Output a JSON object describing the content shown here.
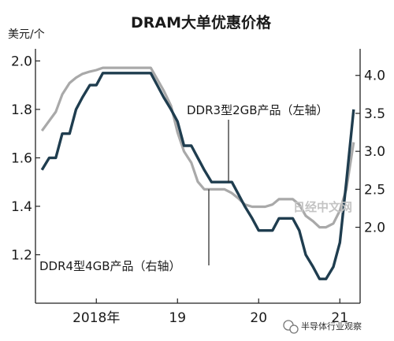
{
  "chart_data": {
    "type": "line",
    "title": "DRAM大单优惠价格",
    "y_left_unit": "美元/个",
    "x_axis": {
      "range": [
        2017.25,
        2021.25
      ],
      "ticks": [
        {
          "value": 2018,
          "label": "2018年"
        },
        {
          "value": 2019,
          "label": "19"
        },
        {
          "value": 2020,
          "label": "20"
        },
        {
          "value": 2021,
          "label": "21"
        }
      ]
    },
    "y_left": {
      "range": [
        1.0,
        2.05
      ],
      "ticks": [
        {
          "value": 1.2,
          "label": "1.2"
        },
        {
          "value": 1.4,
          "label": "1.4"
        },
        {
          "value": 1.6,
          "label": "1.6"
        },
        {
          "value": 1.8,
          "label": "1.8"
        },
        {
          "value": 2.0,
          "label": "2.0"
        }
      ]
    },
    "y_right": {
      "range": [
        1.0,
        4.35
      ],
      "ticks": [
        {
          "value": 2.0,
          "label": "2.0"
        },
        {
          "value": 2.5,
          "label": "2.5"
        },
        {
          "value": 3.0,
          "label": "3.0"
        },
        {
          "value": 3.5,
          "label": "3.5"
        },
        {
          "value": 4.0,
          "label": "4.0"
        }
      ]
    },
    "series": [
      {
        "name": "DDR4型4GB产品（右轴）",
        "axis": "right",
        "color": "#a9a9a9",
        "points": [
          [
            2017.33,
            3.27
          ],
          [
            2017.5,
            3.52
          ],
          [
            2017.58,
            3.75
          ],
          [
            2017.67,
            3.9
          ],
          [
            2017.75,
            3.97
          ],
          [
            2017.83,
            4.02
          ],
          [
            2017.92,
            4.05
          ],
          [
            2018.0,
            4.07
          ],
          [
            2018.08,
            4.1
          ],
          [
            2018.17,
            4.1
          ],
          [
            2018.25,
            4.1
          ],
          [
            2018.33,
            4.1
          ],
          [
            2018.42,
            4.1
          ],
          [
            2018.5,
            4.1
          ],
          [
            2018.58,
            4.1
          ],
          [
            2018.67,
            4.1
          ],
          [
            2018.75,
            3.95
          ],
          [
            2018.83,
            3.8
          ],
          [
            2018.92,
            3.6
          ],
          [
            2019.0,
            3.25
          ],
          [
            2019.08,
            3.0
          ],
          [
            2019.17,
            2.85
          ],
          [
            2019.25,
            2.6
          ],
          [
            2019.33,
            2.5
          ],
          [
            2019.42,
            2.5
          ],
          [
            2019.5,
            2.5
          ],
          [
            2019.58,
            2.5
          ],
          [
            2019.67,
            2.45
          ],
          [
            2019.75,
            2.38
          ],
          [
            2019.83,
            2.3
          ],
          [
            2019.92,
            2.27
          ],
          [
            2020.0,
            2.27
          ],
          [
            2020.08,
            2.27
          ],
          [
            2020.17,
            2.3
          ],
          [
            2020.25,
            2.37
          ],
          [
            2020.33,
            2.37
          ],
          [
            2020.42,
            2.37
          ],
          [
            2020.5,
            2.3
          ],
          [
            2020.58,
            2.15
          ],
          [
            2020.67,
            2.08
          ],
          [
            2020.75,
            2.0
          ],
          [
            2020.83,
            2.0
          ],
          [
            2020.92,
            2.05
          ],
          [
            2021.0,
            2.22
          ],
          [
            2021.08,
            2.5
          ],
          [
            2021.17,
            3.12
          ]
        ]
      },
      {
        "name": "DDR3型2GB产品（左轴）",
        "axis": "left",
        "color": "#1f3d4f",
        "points": [
          [
            2017.33,
            1.55
          ],
          [
            2017.42,
            1.6
          ],
          [
            2017.5,
            1.6
          ],
          [
            2017.58,
            1.7
          ],
          [
            2017.67,
            1.7
          ],
          [
            2017.75,
            1.8
          ],
          [
            2017.83,
            1.85
          ],
          [
            2017.92,
            1.9
          ],
          [
            2018.0,
            1.9
          ],
          [
            2018.08,
            1.95
          ],
          [
            2018.17,
            1.95
          ],
          [
            2018.25,
            1.95
          ],
          [
            2018.33,
            1.95
          ],
          [
            2018.42,
            1.95
          ],
          [
            2018.5,
            1.95
          ],
          [
            2018.58,
            1.95
          ],
          [
            2018.67,
            1.95
          ],
          [
            2018.75,
            1.9
          ],
          [
            2018.83,
            1.85
          ],
          [
            2018.92,
            1.8
          ],
          [
            2019.0,
            1.75
          ],
          [
            2019.08,
            1.65
          ],
          [
            2019.17,
            1.65
          ],
          [
            2019.25,
            1.6
          ],
          [
            2019.33,
            1.55
          ],
          [
            2019.42,
            1.5
          ],
          [
            2019.5,
            1.5
          ],
          [
            2019.58,
            1.5
          ],
          [
            2019.67,
            1.5
          ],
          [
            2019.75,
            1.45
          ],
          [
            2019.83,
            1.4
          ],
          [
            2019.92,
            1.35
          ],
          [
            2020.0,
            1.3
          ],
          [
            2020.08,
            1.3
          ],
          [
            2020.17,
            1.3
          ],
          [
            2020.25,
            1.35
          ],
          [
            2020.33,
            1.35
          ],
          [
            2020.42,
            1.35
          ],
          [
            2020.5,
            1.3
          ],
          [
            2020.58,
            1.2
          ],
          [
            2020.67,
            1.15
          ],
          [
            2020.75,
            1.1
          ],
          [
            2020.83,
            1.1
          ],
          [
            2020.92,
            1.15
          ],
          [
            2021.0,
            1.25
          ],
          [
            2021.08,
            1.5
          ],
          [
            2021.17,
            1.8
          ]
        ]
      }
    ],
    "annotations": [
      {
        "text": "DDR3型2GB产品（左轴）",
        "series": 1
      },
      {
        "text": "DDR4型4GB产品（右轴）",
        "series": 0
      }
    ],
    "grid": false
  },
  "watermark": "日经中文网",
  "source": "半导体行业观察"
}
